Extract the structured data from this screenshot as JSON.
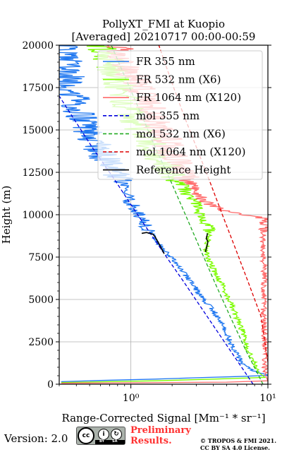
{
  "footer": {
    "version": "Version: 2.0",
    "license_badge": "cc-by-sa-badge",
    "preliminary_line1": "Preliminary",
    "preliminary_line2": "Results.",
    "credit_line1": "© TROPOS & FMI 2021.",
    "credit_line2": "CC BY SA 4.0 License."
  },
  "chart_data": {
    "type": "line",
    "title": "PollyXT_FMI at Kuopio",
    "subtitle": "[Averaged] 20210717 00:00-00:59",
    "xlabel": "Range-Corrected Signal [Mm⁻¹ * sr⁻¹]",
    "ylabel": "Height (m)",
    "xscale": "log",
    "xlim": [
      0.3,
      10
    ],
    "ylim": [
      0,
      20000
    ],
    "xticks": [
      1,
      10
    ],
    "xtick_labels": [
      "10⁰",
      "10¹"
    ],
    "yticks": [
      0,
      2500,
      5000,
      7500,
      10000,
      12500,
      15000,
      17500,
      20000
    ],
    "ytick_labels": [
      "0",
      "2500",
      "5000",
      "7500",
      "10000",
      "12500",
      "15000",
      "17500",
      "20000"
    ],
    "grid": true,
    "legend_position": "upper-right",
    "series": [
      {
        "name": "FR 355 nm",
        "color": "#1f77f0",
        "style": "solid",
        "noisy": true,
        "points": [
          [
            0.31,
            150
          ],
          [
            0.6,
            220
          ],
          [
            1.5,
            300
          ],
          [
            3,
            380
          ],
          [
            6,
            450
          ],
          [
            10,
            520
          ],
          [
            9.5,
            600
          ],
          [
            7.8,
            800
          ],
          [
            6.5,
            1200
          ],
          [
            6,
            1700
          ],
          [
            5.5,
            2200
          ],
          [
            5.2,
            2700
          ],
          [
            4.8,
            3200
          ],
          [
            4.5,
            3700
          ],
          [
            4.1,
            4200
          ],
          [
            3.6,
            4800
          ],
          [
            3.1,
            5400
          ],
          [
            2.8,
            6000
          ],
          [
            2.4,
            6600
          ],
          [
            2.1,
            7200
          ],
          [
            1.8,
            7800
          ],
          [
            1.6,
            8300
          ],
          [
            1.4,
            8900
          ],
          [
            1.25,
            9500
          ],
          [
            1.1,
            10200
          ],
          [
            0.95,
            11000
          ],
          [
            0.85,
            11800
          ],
          [
            0.75,
            12600
          ],
          [
            0.65,
            13400
          ],
          [
            0.55,
            14200
          ],
          [
            0.48,
            15000
          ],
          [
            0.42,
            16000
          ],
          [
            0.38,
            17000
          ],
          [
            0.35,
            18000
          ],
          [
            0.34,
            19000
          ],
          [
            0.33,
            20000
          ]
        ]
      },
      {
        "name": "FR 532 nm (X6)",
        "color": "#7cfc00",
        "style": "solid",
        "noisy": true,
        "points": [
          [
            0.31,
            100
          ],
          [
            1.5,
            200
          ],
          [
            4,
            300
          ],
          [
            9.5,
            400
          ],
          [
            8.5,
            700
          ],
          [
            8,
            1200
          ],
          [
            7.2,
            2000
          ],
          [
            6.8,
            2700
          ],
          [
            6.4,
            3300
          ],
          [
            5.8,
            4100
          ],
          [
            5.2,
            5000
          ],
          [
            4.8,
            5600
          ],
          [
            4.4,
            6200
          ],
          [
            4,
            6800
          ],
          [
            3.7,
            7400
          ],
          [
            3.5,
            7800
          ],
          [
            3.6,
            8300
          ],
          [
            3.8,
            9000
          ],
          [
            3.6,
            9600
          ],
          [
            3.2,
            10000
          ],
          [
            2.9,
            10700
          ],
          [
            2.6,
            11200
          ],
          [
            2.4,
            11700
          ],
          [
            2.2,
            12200
          ],
          [
            1.9,
            12600
          ],
          [
            1.6,
            13500
          ],
          [
            1.3,
            14500
          ],
          [
            1.1,
            15500
          ],
          [
            0.95,
            16500
          ],
          [
            0.85,
            17500
          ],
          [
            0.75,
            18500
          ],
          [
            0.65,
            19500
          ],
          [
            0.6,
            20000
          ]
        ]
      },
      {
        "name": "FR 1064 nm (X120)",
        "color": "#ff6b6b",
        "style": "solid",
        "noisy": true,
        "points": [
          [
            0.31,
            60
          ],
          [
            5,
            120
          ],
          [
            10,
            200
          ],
          [
            9.5,
            600
          ],
          [
            9.5,
            2500
          ],
          [
            9.3,
            4000
          ],
          [
            9.4,
            6500
          ],
          [
            9.2,
            8000
          ],
          [
            9.3,
            9800
          ],
          [
            5.5,
            10100
          ],
          [
            4.5,
            10300
          ],
          [
            3.8,
            10600
          ],
          [
            3.3,
            11000
          ],
          [
            2.9,
            11500
          ],
          [
            2.6,
            12100
          ],
          [
            2.3,
            12700
          ],
          [
            2.1,
            13300
          ],
          [
            1.9,
            14000
          ],
          [
            1.7,
            14800
          ],
          [
            1.5,
            15600
          ],
          [
            1.35,
            16400
          ],
          [
            1.2,
            17200
          ],
          [
            1.05,
            18000
          ],
          [
            0.95,
            18800
          ],
          [
            0.85,
            19500
          ],
          [
            0.8,
            20000
          ]
        ]
      },
      {
        "name": "mol 355 nm",
        "color": "#0000dd",
        "style": "dashed",
        "points": [
          [
            7.8,
            0
          ],
          [
            5.3,
            2000
          ],
          [
            3.6,
            4000
          ],
          [
            2.45,
            6000
          ],
          [
            1.65,
            8000
          ],
          [
            1.12,
            10000
          ],
          [
            0.77,
            12000
          ],
          [
            0.52,
            14000
          ],
          [
            0.36,
            16000
          ],
          [
            0.3,
            17000
          ]
        ]
      },
      {
        "name": "mol 532 nm (X6)",
        "color": "#22aa22",
        "style": "dashed",
        "points": [
          [
            9.2,
            0
          ],
          [
            6.9,
            2000
          ],
          [
            5.3,
            4000
          ],
          [
            4.1,
            6000
          ],
          [
            3.2,
            8000
          ],
          [
            2.5,
            10000
          ],
          [
            1.95,
            12000
          ],
          [
            1.5,
            14000
          ],
          [
            1.18,
            16000
          ],
          [
            0.92,
            18000
          ],
          [
            0.72,
            20000
          ]
        ]
      },
      {
        "name": "mol 1064 nm (X120)",
        "color": "#dd0000",
        "style": "dashed",
        "points": [
          [
            10,
            1300
          ],
          [
            8.9,
            4000
          ],
          [
            7.2,
            6000
          ],
          [
            5.8,
            8000
          ],
          [
            4.65,
            10000
          ],
          [
            3.75,
            12000
          ],
          [
            3.0,
            14000
          ],
          [
            2.4,
            16000
          ],
          [
            1.95,
            18000
          ],
          [
            1.6,
            20000
          ]
        ]
      },
      {
        "name": "Reference Height",
        "color": "#000000",
        "style": "solid",
        "segments": [
          [
            [
              1.2,
              8900
            ],
            [
              1.3,
              8950
            ],
            [
              1.45,
              8850
            ],
            [
              1.5,
              8700
            ],
            [
              1.55,
              8500
            ],
            [
              1.6,
              8300
            ],
            [
              1.65,
              8100
            ],
            [
              1.7,
              7900
            ],
            [
              1.75,
              7700
            ]
          ],
          [
            [
              3.5,
              7800
            ],
            [
              3.55,
              8000
            ],
            [
              3.6,
              8200
            ],
            [
              3.65,
              8400
            ],
            [
              3.55,
              8600
            ],
            [
              3.6,
              8800
            ],
            [
              3.62,
              8900
            ]
          ]
        ]
      }
    ]
  }
}
